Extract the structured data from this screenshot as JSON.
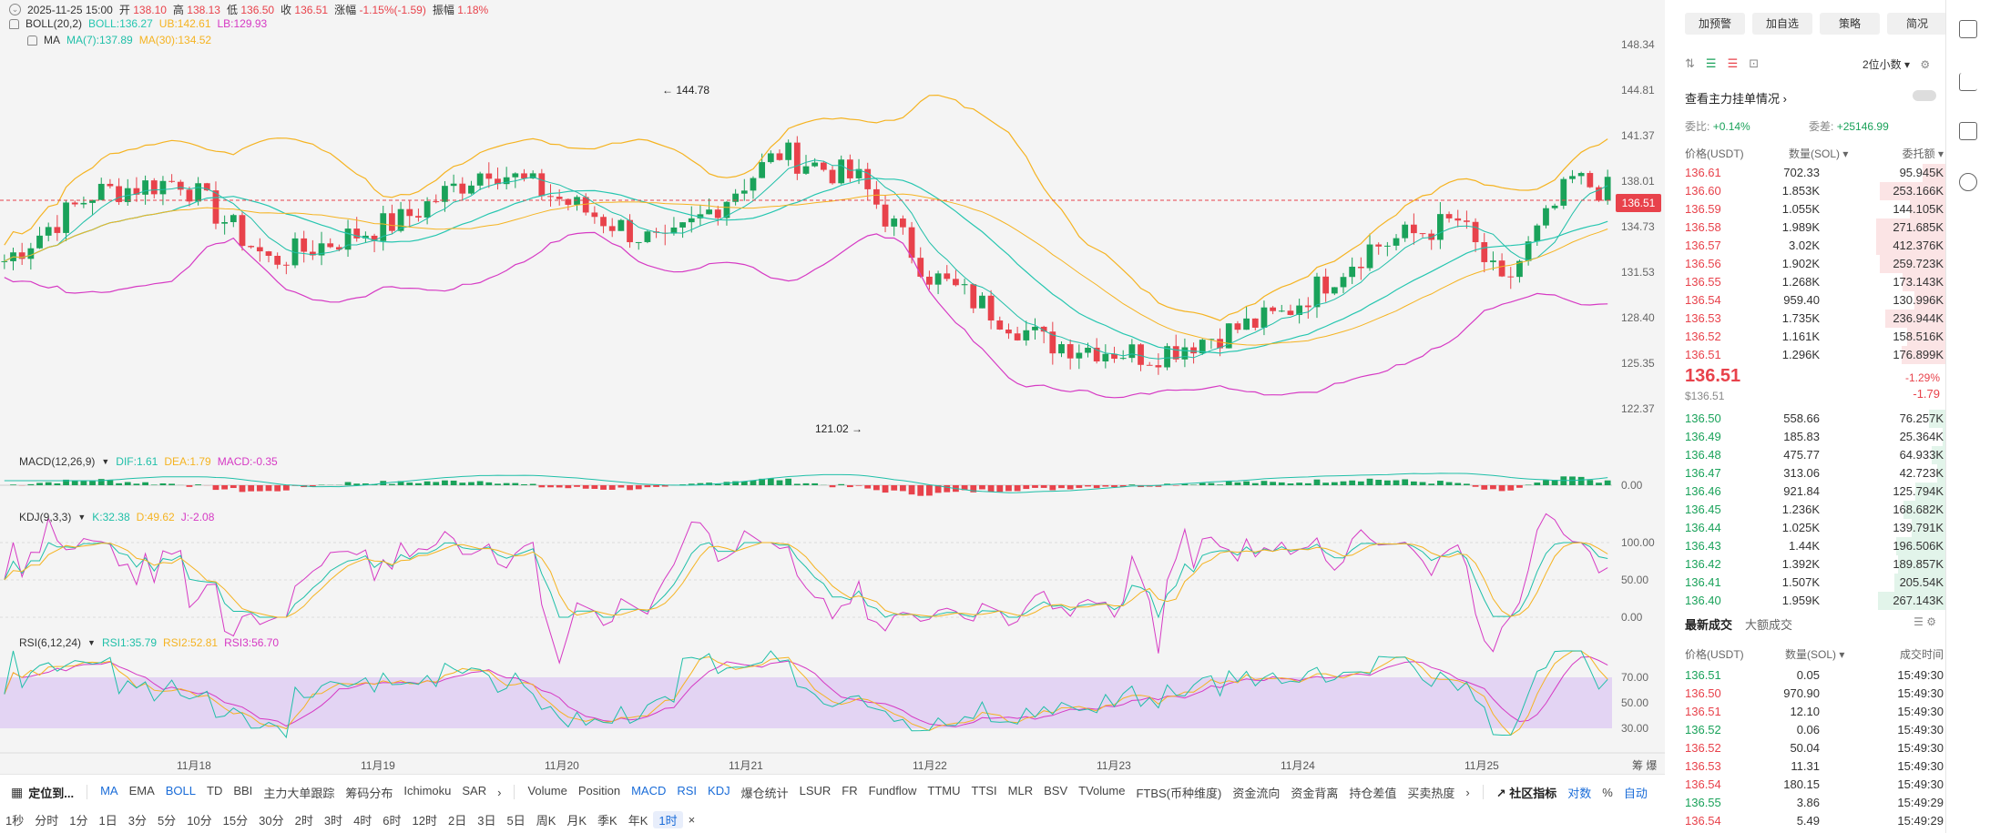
{
  "header": {
    "date": "2025-11-25 15:00",
    "open_label": "开",
    "open": "138.10",
    "high_label": "高",
    "high": "138.13",
    "low_label": "低",
    "low": "136.50",
    "close_label": "收",
    "close": "136.51",
    "change_label": "涨幅",
    "change": "-1.15%(-1.59)",
    "amp_label": "振幅",
    "amp": "1.18%"
  },
  "boll": {
    "label": "BOLL(20,2)",
    "boll": "BOLL:136.27",
    "ub": "UB:142.61",
    "lb": "LB:129.93"
  },
  "ma": {
    "label": "MA",
    "ma7": "MA(7):137.89",
    "ma30": "MA(30):134.52"
  },
  "macd_legend": {
    "label": "MACD(12,26,9)",
    "dif": "DIF:1.61",
    "dea": "DEA:1.79",
    "macd": "MACD:-0.35"
  },
  "kdj_legend": {
    "label": "KDJ(9,3,3)",
    "k": "K:32.38",
    "d": "D:49.62",
    "j": "J:-2.08"
  },
  "rsi_legend": {
    "label": "RSI(6,12,24)",
    "r1": "RSI1:35.79",
    "r2": "RSI2:52.81",
    "r3": "RSI3:56.70"
  },
  "price_axis": [
    "148.34",
    "144.81",
    "141.37",
    "138.01",
    "134.73",
    "131.53",
    "128.40",
    "125.35",
    "122.37"
  ],
  "current_price": "136.51",
  "high_marker": "144.78",
  "low_marker": "121.02",
  "macd_axis": [
    "0.00"
  ],
  "kdj_axis": [
    "100.00",
    "50.00",
    "0.00"
  ],
  "rsi_axis": [
    "70.00",
    "50.00",
    "30.00"
  ],
  "x_labels": [
    "11月18",
    "11月19",
    "11月20",
    "11月21",
    "11月22",
    "11月23",
    "11月24",
    "11月25"
  ],
  "corner": {
    "a": "筹",
    "b": "爆"
  },
  "toolbar1": {
    "locate": "定位到...",
    "indicators": [
      "MA",
      "EMA",
      "BOLL",
      "TD",
      "BBI",
      "主力大单跟踪",
      "筹码分布",
      "Ichimoku",
      "SAR"
    ],
    "sub_indicators": [
      "Volume",
      "Position",
      "MACD",
      "RSI",
      "KDJ",
      "爆仓统计",
      "LSUR",
      "FR",
      "Fundflow",
      "TTMU",
      "TTSI",
      "MLR",
      "BSV",
      "TVolume",
      "FTBS(币种维度)",
      "资金流向",
      "资金背离",
      "持仓差值",
      "买卖热度"
    ],
    "community": "社区指标",
    "log": "对数",
    "percent": "%",
    "auto": "自动"
  },
  "timeframes": [
    "1秒",
    "分时",
    "1分",
    "1日",
    "3分",
    "5分",
    "10分",
    "15分",
    "30分",
    "2时",
    "3时",
    "4时",
    "6时",
    "12时",
    "2日",
    "3日",
    "5日",
    "周K",
    "月K",
    "季K",
    "年K",
    "1时"
  ],
  "right": {
    "buttons": [
      "加预警",
      "加自选",
      "策略",
      "简况"
    ],
    "decimal": "2位小数",
    "main_orders": "查看主力挂单情况",
    "ratio_label": "委比:",
    "ratio": "+0.14%",
    "diff_label": "委差:",
    "diff": "+25146.99",
    "headers": [
      "价格(USDT)",
      "数量(SOL)",
      "委托额"
    ],
    "asks": [
      [
        "136.61",
        "702.33",
        "95.945K",
        0.36
      ],
      [
        "136.60",
        "1.853K",
        "253.166K",
        0.95
      ],
      [
        "136.59",
        "1.055K",
        "144.105K",
        0.54
      ],
      [
        "136.58",
        "1.989K",
        "271.685K",
        1.0
      ],
      [
        "136.57",
        "3.02K",
        "412.376K",
        1.0
      ],
      [
        "136.56",
        "1.902K",
        "259.723K",
        0.95
      ],
      [
        "136.55",
        "1.268K",
        "173.143K",
        0.64
      ],
      [
        "136.54",
        "959.40",
        "130.996K",
        0.48
      ],
      [
        "136.53",
        "1.735K",
        "236.944K",
        0.87
      ],
      [
        "136.52",
        "1.161K",
        "158.516K",
        0.58
      ],
      [
        "136.51",
        "1.296K",
        "176.899K",
        0.65
      ]
    ],
    "mid": {
      "price": "136.51",
      "usd": "$136.51",
      "pct": "-1.29%",
      "chg": "-1.79"
    },
    "bids": [
      [
        "136.50",
        "558.66",
        "76.257K",
        0.28
      ],
      [
        "136.49",
        "185.83",
        "25.364K",
        0.09
      ],
      [
        "136.48",
        "475.77",
        "64.933K",
        0.24
      ],
      [
        "136.47",
        "313.06",
        "42.723K",
        0.16
      ],
      [
        "136.46",
        "921.84",
        "125.794K",
        0.46
      ],
      [
        "136.45",
        "1.236K",
        "168.682K",
        0.62
      ],
      [
        "136.44",
        "1.025K",
        "139.791K",
        0.51
      ],
      [
        "136.43",
        "1.44K",
        "196.506K",
        0.72
      ],
      [
        "136.42",
        "1.392K",
        "189.857K",
        0.7
      ],
      [
        "136.41",
        "1.507K",
        "205.54K",
        0.75
      ],
      [
        "136.40",
        "1.959K",
        "267.143K",
        0.98
      ]
    ],
    "trades_tabs": [
      "最新成交",
      "大额成交"
    ],
    "trades_headers": [
      "价格(USDT)",
      "数量(SOL)",
      "成交时间"
    ],
    "trades": [
      [
        "136.51",
        "0.05",
        "15:49:30",
        "g"
      ],
      [
        "136.50",
        "970.90",
        "15:49:30",
        "r"
      ],
      [
        "136.51",
        "12.10",
        "15:49:30",
        "r"
      ],
      [
        "136.52",
        "0.06",
        "15:49:30",
        "g"
      ],
      [
        "136.52",
        "50.04",
        "15:49:30",
        "r"
      ],
      [
        "136.53",
        "11.31",
        "15:49:30",
        "r"
      ],
      [
        "136.54",
        "180.15",
        "15:49:30",
        "r"
      ],
      [
        "136.55",
        "3.86",
        "15:49:29",
        "g"
      ],
      [
        "136.54",
        "5.49",
        "15:49:29",
        "r"
      ]
    ]
  },
  "colors": {
    "up": "#1aa25a",
    "down": "#e8424b",
    "boll_mid": "#26c6b0",
    "ub": "#f5b321",
    "lb": "#d63ac4",
    "ma7": "#1fbfa8",
    "ma30": "#f5b321",
    "rsi_band": "#e3d4f3"
  }
}
